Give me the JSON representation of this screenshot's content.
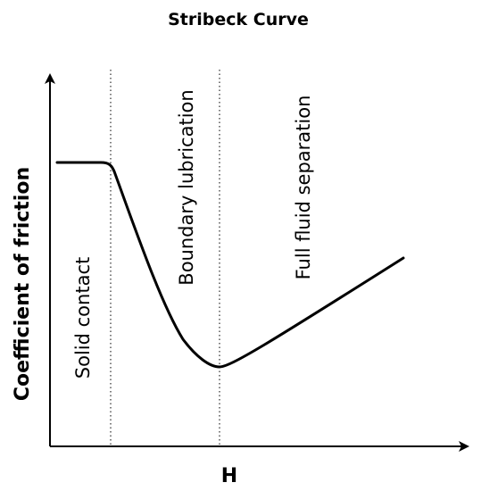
{
  "title": "Stribeck Curve",
  "axes": {
    "x_label": "H",
    "y_label": "Coefficient of friction"
  },
  "regions": [
    {
      "label": "Solid contact"
    },
    {
      "label": "Boundary lubrication"
    },
    {
      "label": "Full fluid separation"
    }
  ]
}
